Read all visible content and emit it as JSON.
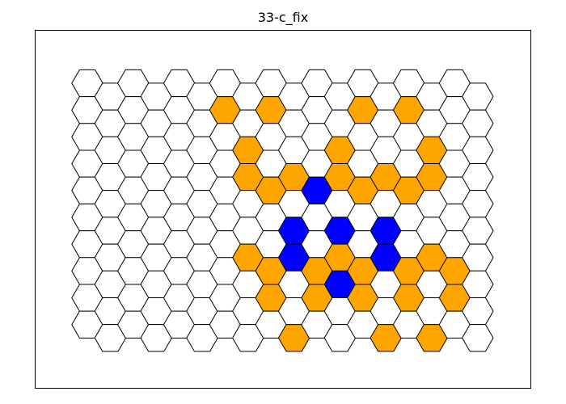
{
  "title": "33-c_fix",
  "grid": {
    "columns": 18,
    "rows": 10
  },
  "colors": {
    "default": "#ffffff",
    "orange": "#ffa500",
    "blue": "#0000ff",
    "edge": "#000000"
  },
  "highlighted_cells": {
    "orange": [
      [
        6,
        2
      ],
      [
        8,
        2
      ],
      [
        12,
        2
      ],
      [
        14,
        2
      ],
      [
        7,
        3
      ],
      [
        11,
        3
      ],
      [
        15,
        3
      ],
      [
        7,
        4
      ],
      [
        9,
        4
      ],
      [
        11,
        4
      ],
      [
        13,
        4
      ],
      [
        15,
        4
      ],
      [
        8,
        5
      ],
      [
        12,
        5
      ],
      [
        14,
        5
      ],
      [
        7,
        7
      ],
      [
        9,
        7
      ],
      [
        11,
        7
      ],
      [
        13,
        7
      ],
      [
        15,
        7
      ],
      [
        8,
        8
      ],
      [
        10,
        8
      ],
      [
        12,
        8
      ],
      [
        14,
        8
      ],
      [
        16,
        8
      ],
      [
        8,
        9
      ],
      [
        10,
        9
      ],
      [
        12,
        9
      ],
      [
        14,
        9
      ],
      [
        16,
        9
      ],
      [
        9,
        10
      ],
      [
        13,
        10
      ],
      [
        15,
        10
      ]
    ],
    "blue": [
      [
        10,
        5
      ],
      [
        9,
        6
      ],
      [
        11,
        6
      ],
      [
        13,
        6
      ],
      [
        9,
        7
      ],
      [
        13,
        7
      ],
      [
        11,
        8
      ]
    ]
  }
}
